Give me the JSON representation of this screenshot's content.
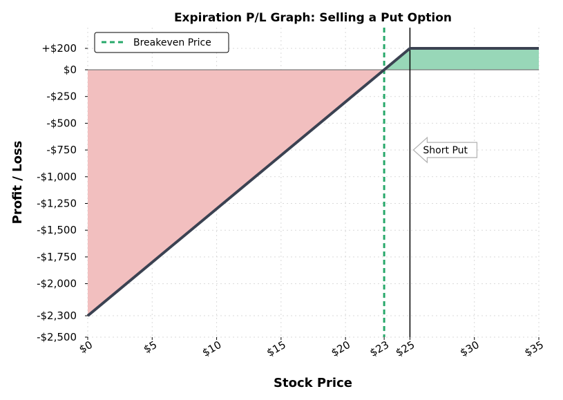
{
  "chart_data": {
    "type": "line",
    "title": "Expiration P/L Graph: Selling a Put Option",
    "xlabel": "Stock Price",
    "ylabel": "Profit / Loss",
    "xlim": [
      0,
      35
    ],
    "ylim": [
      -2500,
      200
    ],
    "x_ticks": [
      {
        "value": 0,
        "label": "$0"
      },
      {
        "value": 5,
        "label": "$5"
      },
      {
        "value": 10,
        "label": "$10"
      },
      {
        "value": 15,
        "label": "$15"
      },
      {
        "value": 20,
        "label": "$20"
      },
      {
        "value": 23,
        "label": "$23"
      },
      {
        "value": 25,
        "label": "$25"
      },
      {
        "value": 30,
        "label": "$30"
      },
      {
        "value": 35,
        "label": "$35"
      }
    ],
    "y_ticks": [
      {
        "value": 200,
        "label": "+$200"
      },
      {
        "value": 0,
        "label": "$0"
      },
      {
        "value": -250,
        "label": "-$250"
      },
      {
        "value": -500,
        "label": "-$500"
      },
      {
        "value": -750,
        "label": "-$750"
      },
      {
        "value": -1000,
        "label": "-$1,000"
      },
      {
        "value": -1250,
        "label": "-$1,250"
      },
      {
        "value": -1500,
        "label": "-$1,500"
      },
      {
        "value": -1750,
        "label": "-$1,750"
      },
      {
        "value": -2000,
        "label": "-$2,000"
      },
      {
        "value": -2300,
        "label": "-$2,300"
      },
      {
        "value": -2500,
        "label": "-$2,500"
      }
    ],
    "series": [
      {
        "x": [
          0,
          23,
          25,
          35
        ],
        "y": [
          -2300,
          0,
          200,
          200
        ]
      }
    ],
    "breakeven": {
      "x": 23,
      "label": "Breakeven Price"
    },
    "strike": {
      "x": 25
    },
    "annotation": {
      "text": "Short Put",
      "y": -750
    },
    "legend": {
      "position": "top-left"
    },
    "grid": true,
    "colors": {
      "line": "#3b4252",
      "loss_fill": "#f2bfbf",
      "profit_fill": "#98d7b8",
      "breakeven": "#27a86a",
      "strike": "#000000",
      "grid": "#d9d9d9"
    }
  }
}
